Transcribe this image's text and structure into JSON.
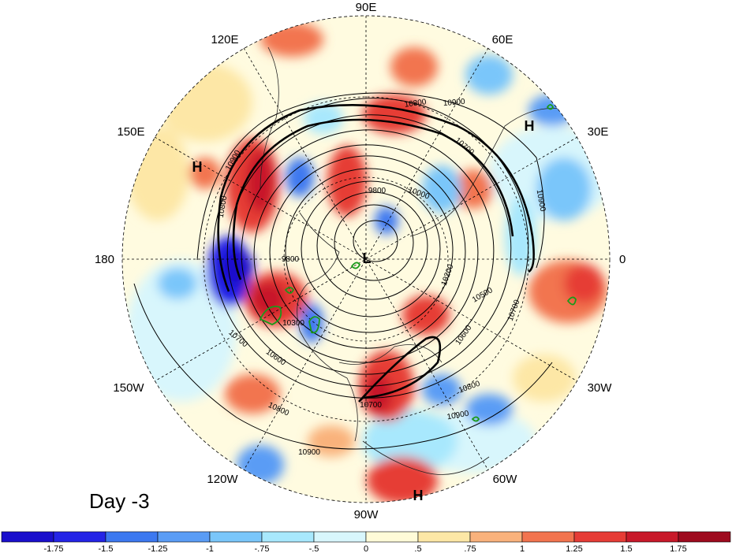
{
  "map": {
    "projection": "polar stereographic, north pole",
    "lon_labels": [
      {
        "text": "90E",
        "name": "lon-label-90e"
      },
      {
        "text": "60E",
        "name": "lon-label-60e"
      },
      {
        "text": "120E",
        "name": "lon-label-120e"
      },
      {
        "text": "30E",
        "name": "lon-label-30e"
      },
      {
        "text": "150E",
        "name": "lon-label-150e"
      },
      {
        "text": "180",
        "name": "lon-label-180"
      },
      {
        "text": "0",
        "name": "lon-label-0"
      },
      {
        "text": "150W",
        "name": "lon-label-150w"
      },
      {
        "text": "30W",
        "name": "lon-label-30w"
      },
      {
        "text": "120W",
        "name": "lon-label-120w"
      },
      {
        "text": "60W",
        "name": "lon-label-60w"
      },
      {
        "text": "90W",
        "name": "lon-label-90w"
      }
    ],
    "pressure_centers": [
      {
        "text": "H",
        "name": "high-center-europe"
      },
      {
        "text": "H",
        "name": "high-center-pacific"
      },
      {
        "text": "L",
        "name": "low-center-pole"
      },
      {
        "text": "H",
        "name": "high-center-south-america"
      }
    ],
    "contour_labels": [
      {
        "text": "10800",
        "name": "contour-label-10800-a"
      },
      {
        "text": "10900",
        "name": "contour-label-10900-a"
      },
      {
        "text": "10700",
        "name": "contour-label-10700-a"
      },
      {
        "text": "10900",
        "name": "contour-label-10900-b"
      },
      {
        "text": "10800",
        "name": "contour-label-10800-b"
      },
      {
        "text": "9800",
        "name": "contour-label-9800-a"
      },
      {
        "text": "10000",
        "name": "contour-label-10000"
      },
      {
        "text": "10900",
        "name": "contour-label-10900-c"
      },
      {
        "text": "9800",
        "name": "contour-label-9800-b"
      },
      {
        "text": "10200",
        "name": "contour-label-10200"
      },
      {
        "text": "10500",
        "name": "contour-label-10500"
      },
      {
        "text": "10700",
        "name": "contour-label-10700-b"
      },
      {
        "text": "10300",
        "name": "contour-label-10300"
      },
      {
        "text": "10700",
        "name": "contour-label-10700-c"
      },
      {
        "text": "10600",
        "name": "contour-label-10600-a"
      },
      {
        "text": "10600",
        "name": "contour-label-10600-b"
      },
      {
        "text": "10800",
        "name": "contour-label-10800-c"
      },
      {
        "text": "10800",
        "name": "contour-label-10800-d"
      },
      {
        "text": "10700",
        "name": "contour-label-10700-d"
      },
      {
        "text": "10900",
        "name": "contour-label-10900-d"
      },
      {
        "text": "10900",
        "name": "contour-label-10900-e"
      }
    ],
    "day_label": "Day -3"
  },
  "colorbar": {
    "colors": [
      "#1a0fcc",
      "#2424e6",
      "#3c78f0",
      "#5a9cf5",
      "#7ac6fa",
      "#a8e8fd",
      "#d8f6fc",
      "#fffbd8",
      "#fde7a6",
      "#f9b27c",
      "#f2744f",
      "#e63c36",
      "#c8192a",
      "#9e0a1e"
    ],
    "labels": [
      "-1.75",
      "-1.5",
      "-1.25",
      "-1",
      "-.75",
      "-.5",
      "0",
      ".5",
      ".75",
      "1",
      "1.25",
      "1.5",
      "1.75"
    ]
  }
}
